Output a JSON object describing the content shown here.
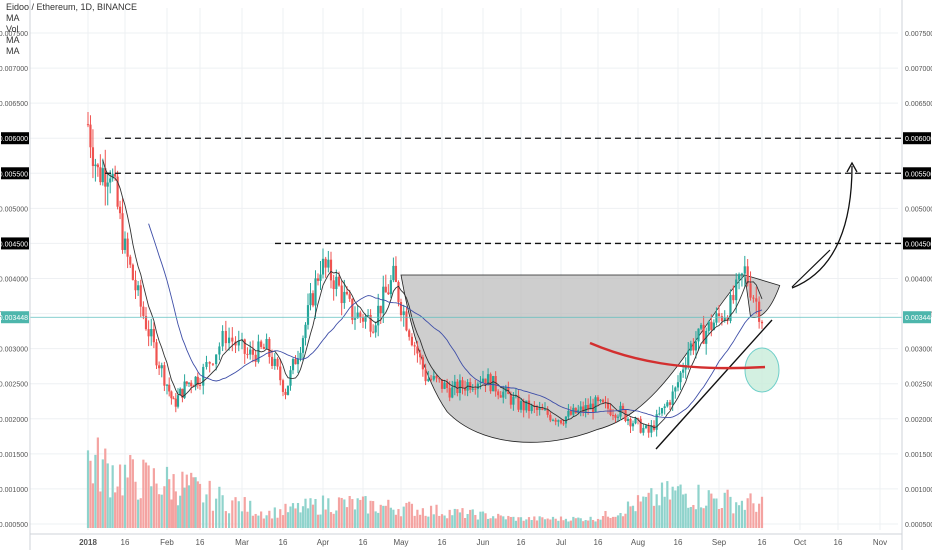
{
  "header": {
    "title": "Eidoo / Ethereum, 1D, BINANCE",
    "indicators": [
      "MA",
      "Vol",
      "MA",
      "MA"
    ]
  },
  "colors": {
    "up": "#26a69a",
    "down": "#ef5350",
    "vol_up": "#8fd3cc",
    "vol_down": "#f4a3a1",
    "ma_fast": "#333333",
    "ma_slow": "#3f4fa8",
    "current_price_line": "#5fbfbf",
    "drawing_red": "#d32f2f",
    "cup_fill": "#bdbdbd",
    "circle_fill": "#c8ecd9",
    "circle_stroke": "#6fcfc9"
  },
  "chart_data": {
    "type": "candlestick",
    "symbol": "Eidoo / Ethereum",
    "interval": "1D",
    "exchange": "BINANCE",
    "x_ticks": [
      "2018",
      "16",
      "Feb",
      "16",
      "Mar",
      "16",
      "Apr",
      "16",
      "May",
      "16",
      "Jun",
      "16",
      "Jul",
      "16",
      "Aug",
      "16",
      "Sep",
      "16",
      "Oct",
      "16",
      "Nov"
    ],
    "y_ticks": [
      "0.007500",
      "0.007000",
      "0.006500",
      "0.006000",
      "0.005500",
      "0.005000",
      "0.004500",
      "0.004000",
      "0.003500",
      "0.003000",
      "0.002500",
      "0.002000",
      "0.001500",
      "0.001000",
      "0.000500"
    ],
    "ylim": [
      0.0005,
      0.0078
    ],
    "current_price": "0.003448",
    "highlighted_levels": [
      "0.006000",
      "0.005500",
      "0.004500"
    ],
    "price_path": [
      {
        "date": "2018-01-01",
        "close": 0.0062
      },
      {
        "date": "2018-01-05",
        "close": 0.0055
      },
      {
        "date": "2018-01-10",
        "close": 0.0056
      },
      {
        "date": "2018-01-16",
        "close": 0.0044
      },
      {
        "date": "2018-01-22",
        "close": 0.0036
      },
      {
        "date": "2018-01-28",
        "close": 0.0029
      },
      {
        "date": "2018-02-04",
        "close": 0.0022
      },
      {
        "date": "2018-02-10",
        "close": 0.0025
      },
      {
        "date": "2018-02-16",
        "close": 0.0026
      },
      {
        "date": "2018-02-24",
        "close": 0.0032
      },
      {
        "date": "2018-03-03",
        "close": 0.0029
      },
      {
        "date": "2018-03-10",
        "close": 0.003
      },
      {
        "date": "2018-03-17",
        "close": 0.0024
      },
      {
        "date": "2018-03-24",
        "close": 0.0032
      },
      {
        "date": "2018-03-31",
        "close": 0.0042
      },
      {
        "date": "2018-04-05",
        "close": 0.004
      },
      {
        "date": "2018-04-12",
        "close": 0.0035
      },
      {
        "date": "2018-04-20",
        "close": 0.0034
      },
      {
        "date": "2018-04-28",
        "close": 0.004
      },
      {
        "date": "2018-05-03",
        "close": 0.0034
      },
      {
        "date": "2018-05-10",
        "close": 0.0026
      },
      {
        "date": "2018-05-20",
        "close": 0.0024
      },
      {
        "date": "2018-06-01",
        "close": 0.0026
      },
      {
        "date": "2018-06-15",
        "close": 0.0022
      },
      {
        "date": "2018-07-01",
        "close": 0.002
      },
      {
        "date": "2018-07-15",
        "close": 0.0022
      },
      {
        "date": "2018-07-25",
        "close": 0.0021
      },
      {
        "date": "2018-08-05",
        "close": 0.0018
      },
      {
        "date": "2018-08-15",
        "close": 0.0024
      },
      {
        "date": "2018-08-20",
        "close": 0.003
      },
      {
        "date": "2018-08-28",
        "close": 0.0033
      },
      {
        "date": "2018-09-05",
        "close": 0.0036
      },
      {
        "date": "2018-09-10",
        "close": 0.0041
      },
      {
        "date": "2018-09-16",
        "close": 0.003448
      }
    ],
    "volume": [
      {
        "date": "2018-01-01",
        "value": 0.0017
      },
      {
        "date": "2018-01-16",
        "value": 0.0014
      },
      {
        "date": "2018-02-10",
        "value": 0.0012
      },
      {
        "date": "2018-03-10",
        "value": 0.0007
      },
      {
        "date": "2018-04-05",
        "value": 0.0009
      },
      {
        "date": "2018-05-03",
        "value": 0.0008
      },
      {
        "date": "2018-06-15",
        "value": 0.0006
      },
      {
        "date": "2018-07-15",
        "value": 0.0006
      },
      {
        "date": "2018-08-15",
        "value": 0.0011
      },
      {
        "date": "2018-09-10",
        "value": 0.0009
      }
    ]
  }
}
